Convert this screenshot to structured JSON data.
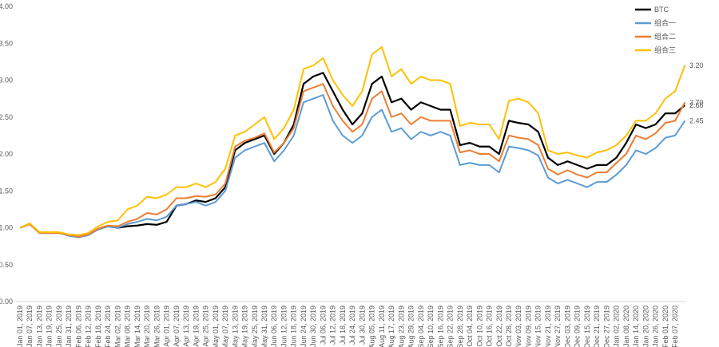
{
  "chart_data": {
    "type": "line",
    "categories": [
      "Jan 01, 2019",
      "Jan 07, 2019",
      "Jan 13, 2019",
      "Jan 19, 2019",
      "Jan 25, 2019",
      "Jan 31, 2019",
      "Feb 06, 2019",
      "Feb 12, 2019",
      "Feb 18, 2019",
      "Feb 24, 2019",
      "Mar 02, 2019",
      "Mar 08, 2019",
      "Mar 14, 2019",
      "Mar 20, 2019",
      "Mar 26, 2019",
      "Apr 01, 2019",
      "Apr 07, 2019",
      "Apr 13, 2019",
      "Apr 19, 2019",
      "Apr 25, 2019",
      "May 01, 2019",
      "May 07, 2019",
      "May 13, 2019",
      "May 19, 2019",
      "May 25, 2019",
      "May 31, 2019",
      "Jun 06, 2019",
      "Jun 12, 2019",
      "Jun 18, 2019",
      "Jun 24, 2019",
      "Jun 30, 2019",
      "Jul 06, 2019",
      "Jul 12, 2019",
      "Jul 18, 2019",
      "Jul 24, 2019",
      "Jul 30, 2019",
      "Aug 05, 2019",
      "Aug 11, 2019",
      "Aug 17, 2019",
      "Aug 23, 2019",
      "Aug 29, 2019",
      "Sep 04, 2019",
      "Sep 10, 2019",
      "Sep 16, 2019",
      "Sep 22, 2019",
      "Sep 28, 2019",
      "Oct 04, 2019",
      "Oct 10, 2019",
      "Oct 16, 2019",
      "Oct 22, 2019",
      "Oct 28, 2019",
      "Nov 03, 2019",
      "Nov 09, 2019",
      "Nov 15, 2019",
      "Nov 21, 2019",
      "Nov 27, 2019",
      "Dec 03, 2019",
      "Dec 09, 2019",
      "Dec 15, 2019",
      "Dec 21, 2019",
      "Dec 27, 2019",
      "Jan 02, 2020",
      "Jan 08, 2020",
      "Jan 14, 2020",
      "Jan 20, 2020",
      "Jan 26, 2020",
      "Feb 01, 2020",
      "Feb 07, 2020",
      null
    ],
    "series": [
      {
        "name": "BTC",
        "color": "#000000",
        "end_label": "2.66",
        "values": [
          1.0,
          1.05,
          0.93,
          0.93,
          0.93,
          0.9,
          0.88,
          0.91,
          0.98,
          1.02,
          1.0,
          1.02,
          1.03,
          1.05,
          1.04,
          1.08,
          1.3,
          1.32,
          1.37,
          1.35,
          1.4,
          1.55,
          2.05,
          2.15,
          2.2,
          2.25,
          2.0,
          2.15,
          2.4,
          2.95,
          3.05,
          3.1,
          2.85,
          2.6,
          2.4,
          2.55,
          2.95,
          3.05,
          2.7,
          2.75,
          2.6,
          2.7,
          2.65,
          2.6,
          2.6,
          2.12,
          2.15,
          2.1,
          2.1,
          2.0,
          2.45,
          2.42,
          2.4,
          2.3,
          1.95,
          1.85,
          1.9,
          1.85,
          1.8,
          1.85,
          1.85,
          1.95,
          2.15,
          2.4,
          2.35,
          2.4,
          2.55,
          2.55,
          2.66
        ]
      },
      {
        "name": "组合一",
        "color": "#5b9bd5",
        "end_label": "2.45",
        "values": [
          1.0,
          1.05,
          0.93,
          0.93,
          0.93,
          0.89,
          0.87,
          0.9,
          0.98,
          1.02,
          1.0,
          1.05,
          1.08,
          1.12,
          1.1,
          1.15,
          1.3,
          1.32,
          1.35,
          1.3,
          1.35,
          1.5,
          1.95,
          2.05,
          2.1,
          2.15,
          1.9,
          2.05,
          2.25,
          2.7,
          2.75,
          2.8,
          2.45,
          2.25,
          2.15,
          2.25,
          2.5,
          2.6,
          2.3,
          2.35,
          2.2,
          2.3,
          2.25,
          2.3,
          2.25,
          1.85,
          1.88,
          1.85,
          1.85,
          1.75,
          2.1,
          2.08,
          2.05,
          1.98,
          1.68,
          1.6,
          1.65,
          1.6,
          1.55,
          1.62,
          1.62,
          1.72,
          1.85,
          2.05,
          2.0,
          2.08,
          2.22,
          2.25,
          2.45
        ]
      },
      {
        "name": "组合二",
        "color": "#ed7d31",
        "end_label": "2.70",
        "values": [
          1.0,
          1.05,
          0.93,
          0.93,
          0.93,
          0.9,
          0.88,
          0.91,
          0.99,
          1.03,
          1.02,
          1.08,
          1.12,
          1.2,
          1.18,
          1.25,
          1.4,
          1.4,
          1.43,
          1.42,
          1.45,
          1.6,
          2.1,
          2.18,
          2.22,
          2.28,
          2.02,
          2.15,
          2.35,
          2.85,
          2.9,
          2.95,
          2.65,
          2.45,
          2.3,
          2.4,
          2.75,
          2.85,
          2.5,
          2.55,
          2.4,
          2.5,
          2.45,
          2.45,
          2.45,
          2.02,
          2.05,
          2.0,
          2.0,
          1.9,
          2.25,
          2.22,
          2.2,
          2.12,
          1.8,
          1.72,
          1.78,
          1.72,
          1.68,
          1.75,
          1.75,
          1.88,
          2.0,
          2.25,
          2.2,
          2.28,
          2.42,
          2.45,
          2.7
        ]
      },
      {
        "name": "组合三",
        "color": "#ffc000",
        "end_label": "3.20",
        "values": [
          1.0,
          1.06,
          0.94,
          0.94,
          0.94,
          0.91,
          0.9,
          0.93,
          1.02,
          1.08,
          1.1,
          1.25,
          1.3,
          1.42,
          1.4,
          1.45,
          1.55,
          1.55,
          1.6,
          1.55,
          1.62,
          1.8,
          2.25,
          2.3,
          2.4,
          2.5,
          2.2,
          2.35,
          2.6,
          3.15,
          3.2,
          3.3,
          3.0,
          2.8,
          2.65,
          2.85,
          3.35,
          3.45,
          3.05,
          3.15,
          2.95,
          3.05,
          3.0,
          3.0,
          2.95,
          2.38,
          2.42,
          2.4,
          2.4,
          2.2,
          2.72,
          2.75,
          2.7,
          2.55,
          2.05,
          2.0,
          2.02,
          1.98,
          1.95,
          2.02,
          2.05,
          2.12,
          2.25,
          2.45,
          2.45,
          2.55,
          2.75,
          2.85,
          3.2
        ]
      }
    ],
    "ylim": [
      0,
      4
    ],
    "yticks": [
      {
        "value": 0,
        "label": "0.00"
      },
      {
        "value": 0.5,
        "label": "0.50"
      },
      {
        "value": 1,
        "label": "1.00"
      },
      {
        "value": 1.5,
        "label": "1.50"
      },
      {
        "value": 2,
        "label": "2.00"
      },
      {
        "value": 2.5,
        "label": "2.50"
      },
      {
        "value": 3,
        "label": "3.00"
      },
      {
        "value": 3.5,
        "label": "3.50"
      },
      {
        "value": 4,
        "label": "4.00"
      }
    ],
    "grid": false,
    "legend": "top-right"
  }
}
